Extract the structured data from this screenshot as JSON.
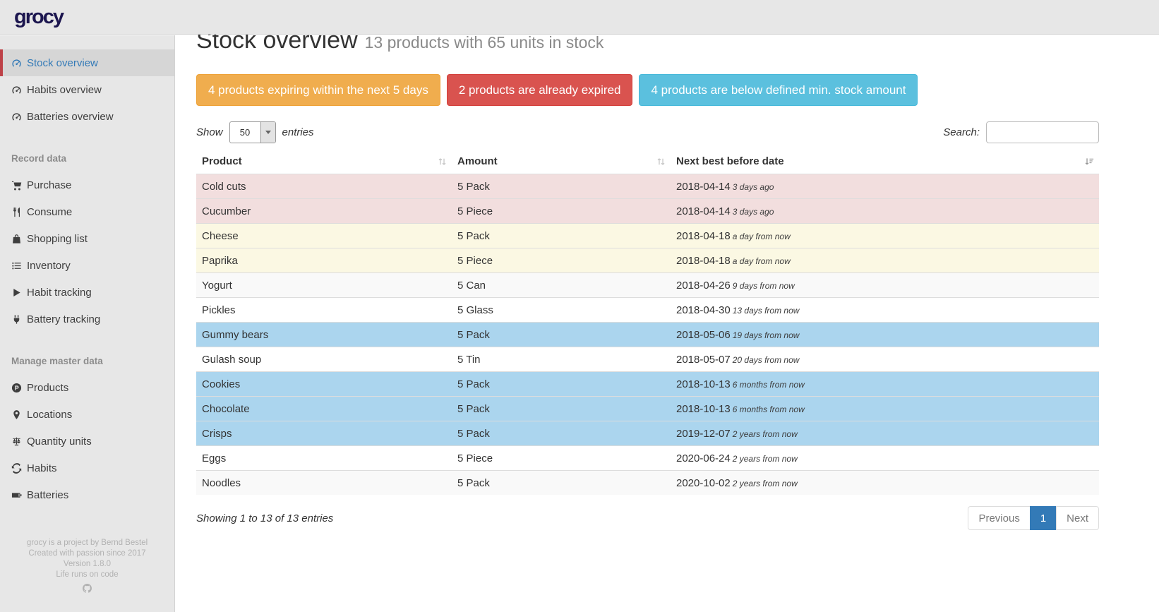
{
  "brand": {
    "logo": "grocy"
  },
  "colors": {
    "active_accent": "#bd4147",
    "active_link": "#337ab7",
    "row_expired": "#f2dede",
    "row_expiring": "#fbf8e3",
    "row_below_min": "#abd5ee",
    "pagination_active": "#337ab7"
  },
  "sidebar": {
    "sections": [
      {
        "header": null,
        "items": [
          {
            "label": "Stock overview",
            "icon": "gauge-icon",
            "active": true
          },
          {
            "label": "Habits overview",
            "icon": "gauge-icon",
            "active": false
          },
          {
            "label": "Batteries overview",
            "icon": "gauge-icon",
            "active": false
          }
        ]
      },
      {
        "header": "Record data",
        "items": [
          {
            "label": "Purchase",
            "icon": "shopping-cart-icon",
            "active": false
          },
          {
            "label": "Consume",
            "icon": "utensils-icon",
            "active": false
          },
          {
            "label": "Shopping list",
            "icon": "shopping-bag-icon",
            "active": false
          },
          {
            "label": "Inventory",
            "icon": "list-icon",
            "active": false
          },
          {
            "label": "Habit tracking",
            "icon": "play-icon",
            "active": false
          },
          {
            "label": "Battery tracking",
            "icon": "plug-icon",
            "active": false
          }
        ]
      },
      {
        "header": "Manage master data",
        "items": [
          {
            "label": "Products",
            "icon": "product-hunt-icon",
            "active": false
          },
          {
            "label": "Locations",
            "icon": "map-marker-icon",
            "active": false
          },
          {
            "label": "Quantity units",
            "icon": "balance-scale-icon",
            "active": false
          },
          {
            "label": "Habits",
            "icon": "sync-icon",
            "active": false
          },
          {
            "label": "Batteries",
            "icon": "battery-icon",
            "active": false
          }
        ]
      }
    ],
    "footer_lines": [
      "grocy is a project by Bernd Bestel",
      "Created with passion since 2017",
      "Version 1.8.0",
      "Life runs on code"
    ],
    "footer_icon": "github-icon"
  },
  "header": {
    "title": "Stock overview",
    "subtitle": "13 products with 65 units in stock"
  },
  "alerts": [
    {
      "label": "4 products expiring within the next 5 days",
      "color": "#f0ad4e",
      "border": "#eea236"
    },
    {
      "label": "2 products are already expired",
      "color": "#d9534f",
      "border": "#d43f3a"
    },
    {
      "label": "4 products are below defined min. stock amount",
      "color": "#5bc0de",
      "border": "#46b8da"
    }
  ],
  "controls": {
    "show_label": "Show",
    "entries_value": "50",
    "entries_label": "entries",
    "search_label": "Search:",
    "search_value": ""
  },
  "table": {
    "columns": [
      {
        "label": "Product",
        "sort": "both"
      },
      {
        "label": "Amount",
        "sort": "both"
      },
      {
        "label": "Next best before date",
        "sort": "amount-asc"
      }
    ],
    "rows": [
      {
        "product": "Cold cuts",
        "amount": "5 Pack",
        "date": "2018-04-14",
        "relative": "3 days ago",
        "status": "expired"
      },
      {
        "product": "Cucumber",
        "amount": "5 Piece",
        "date": "2018-04-14",
        "relative": "3 days ago",
        "status": "expired"
      },
      {
        "product": "Cheese",
        "amount": "5 Pack",
        "date": "2018-04-18",
        "relative": "a day from now",
        "status": "expiring"
      },
      {
        "product": "Paprika",
        "amount": "5 Piece",
        "date": "2018-04-18",
        "relative": "a day from now",
        "status": "expiring"
      },
      {
        "product": "Yogurt",
        "amount": "5 Can",
        "date": "2018-04-26",
        "relative": "9 days from now",
        "status": "none"
      },
      {
        "product": "Pickles",
        "amount": "5 Glass",
        "date": "2018-04-30",
        "relative": "13 days from now",
        "status": "none"
      },
      {
        "product": "Gummy bears",
        "amount": "5 Pack",
        "date": "2018-05-06",
        "relative": "19 days from now",
        "status": "below-min"
      },
      {
        "product": "Gulash soup",
        "amount": "5 Tin",
        "date": "2018-05-07",
        "relative": "20 days from now",
        "status": "none"
      },
      {
        "product": "Cookies",
        "amount": "5 Pack",
        "date": "2018-10-13",
        "relative": "6 months from now",
        "status": "below-min"
      },
      {
        "product": "Chocolate",
        "amount": "5 Pack",
        "date": "2018-10-13",
        "relative": "6 months from now",
        "status": "below-min"
      },
      {
        "product": "Crisps",
        "amount": "5 Pack",
        "date": "2019-12-07",
        "relative": "2 years from now",
        "status": "below-min"
      },
      {
        "product": "Eggs",
        "amount": "5 Piece",
        "date": "2020-06-24",
        "relative": "2 years from now",
        "status": "none"
      },
      {
        "product": "Noodles",
        "amount": "5 Pack",
        "date": "2020-10-02",
        "relative": "2 years from now",
        "status": "none"
      }
    ]
  },
  "table_footer": {
    "showing": "Showing 1 to 13 of 13 entries",
    "pagination": [
      {
        "label": "Previous",
        "active": false
      },
      {
        "label": "1",
        "active": true
      },
      {
        "label": "Next",
        "active": false
      }
    ]
  }
}
